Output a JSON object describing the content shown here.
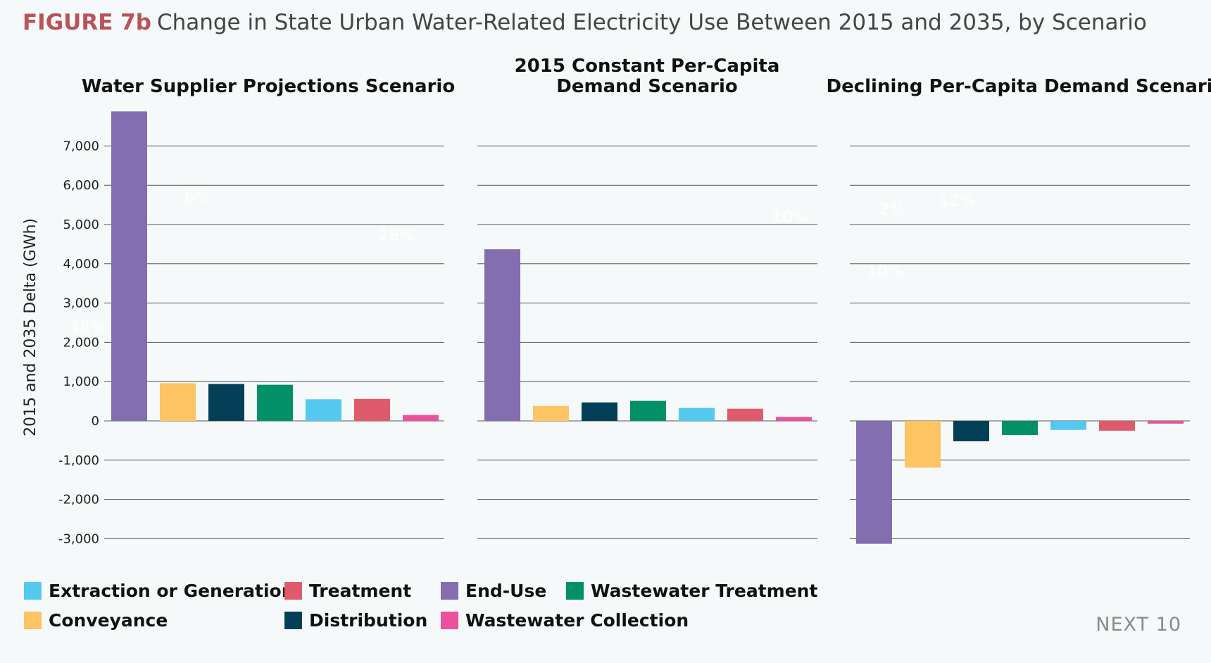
{
  "figure": {
    "label": "FIGURE 7b",
    "title": "Change in State Urban Water-Related Electricity Use Between 2015 and 2035, by Scenario"
  },
  "brand": "NEXT 10",
  "chart_data": {
    "type": "bar",
    "ylabel": "2015 and 2035 Delta (GWh)",
    "ylim": [
      -3000,
      7800
    ],
    "yticks": [
      7000,
      6000,
      5000,
      4000,
      3000,
      2000,
      1000,
      0,
      -1000,
      -2000,
      -3000
    ],
    "ytick_labels": [
      "7,000",
      "6,000",
      "5,000",
      "4,000",
      "3,000",
      "2,000",
      "1,000",
      "0",
      "-1,000",
      "-2,000",
      "-3,000"
    ],
    "grid": true,
    "categories": [
      "End-Use",
      "Conveyance",
      "Distribution",
      "Wastewater Treatment",
      "Extraction or Generation",
      "Treatment",
      "Wastewater Collection"
    ],
    "colors": {
      "End-Use": "#836eb0",
      "Conveyance": "#fcc463",
      "Distribution": "#033f57",
      "Wastewater Treatment": "#029066",
      "Extraction or Generation": "#55c8f0",
      "Treatment": "#df5a6b",
      "Wastewater Collection": "#ec519b"
    },
    "panels": [
      {
        "title_lines": [
          "Water Supplier Projections Scenario"
        ],
        "values": [
          7880,
          960,
          940,
          920,
          550,
          560,
          150
        ],
        "pct_labels": [
          "6%",
          "26%",
          "38%"
        ]
      },
      {
        "title_lines": [
          "2015 Constant Per-Capita",
          "Demand Scenario"
        ],
        "values": [
          4370,
          380,
          470,
          510,
          330,
          310,
          100
        ],
        "pct_labels": [
          "10%"
        ]
      },
      {
        "title_lines": [
          "Declining Per-Capita Demand Scenario"
        ],
        "values": [
          -3130,
          -1190,
          -520,
          -360,
          -230,
          -250,
          -70
        ],
        "pct_labels": [
          "2%",
          "12%",
          "10%"
        ]
      }
    ]
  },
  "legend": {
    "items": [
      {
        "label": "Extraction or Generation",
        "color": "#55c8f0"
      },
      {
        "label": "Conveyance",
        "color": "#fcc463"
      },
      {
        "label": "Treatment",
        "color": "#df5a6b"
      },
      {
        "label": "Distribution",
        "color": "#033f57"
      },
      {
        "label": "End-Use",
        "color": "#836eb0"
      },
      {
        "label": "Wastewater Collection",
        "color": "#ec519b"
      },
      {
        "label": "Wastewater Treatment",
        "color": "#029066"
      }
    ]
  }
}
